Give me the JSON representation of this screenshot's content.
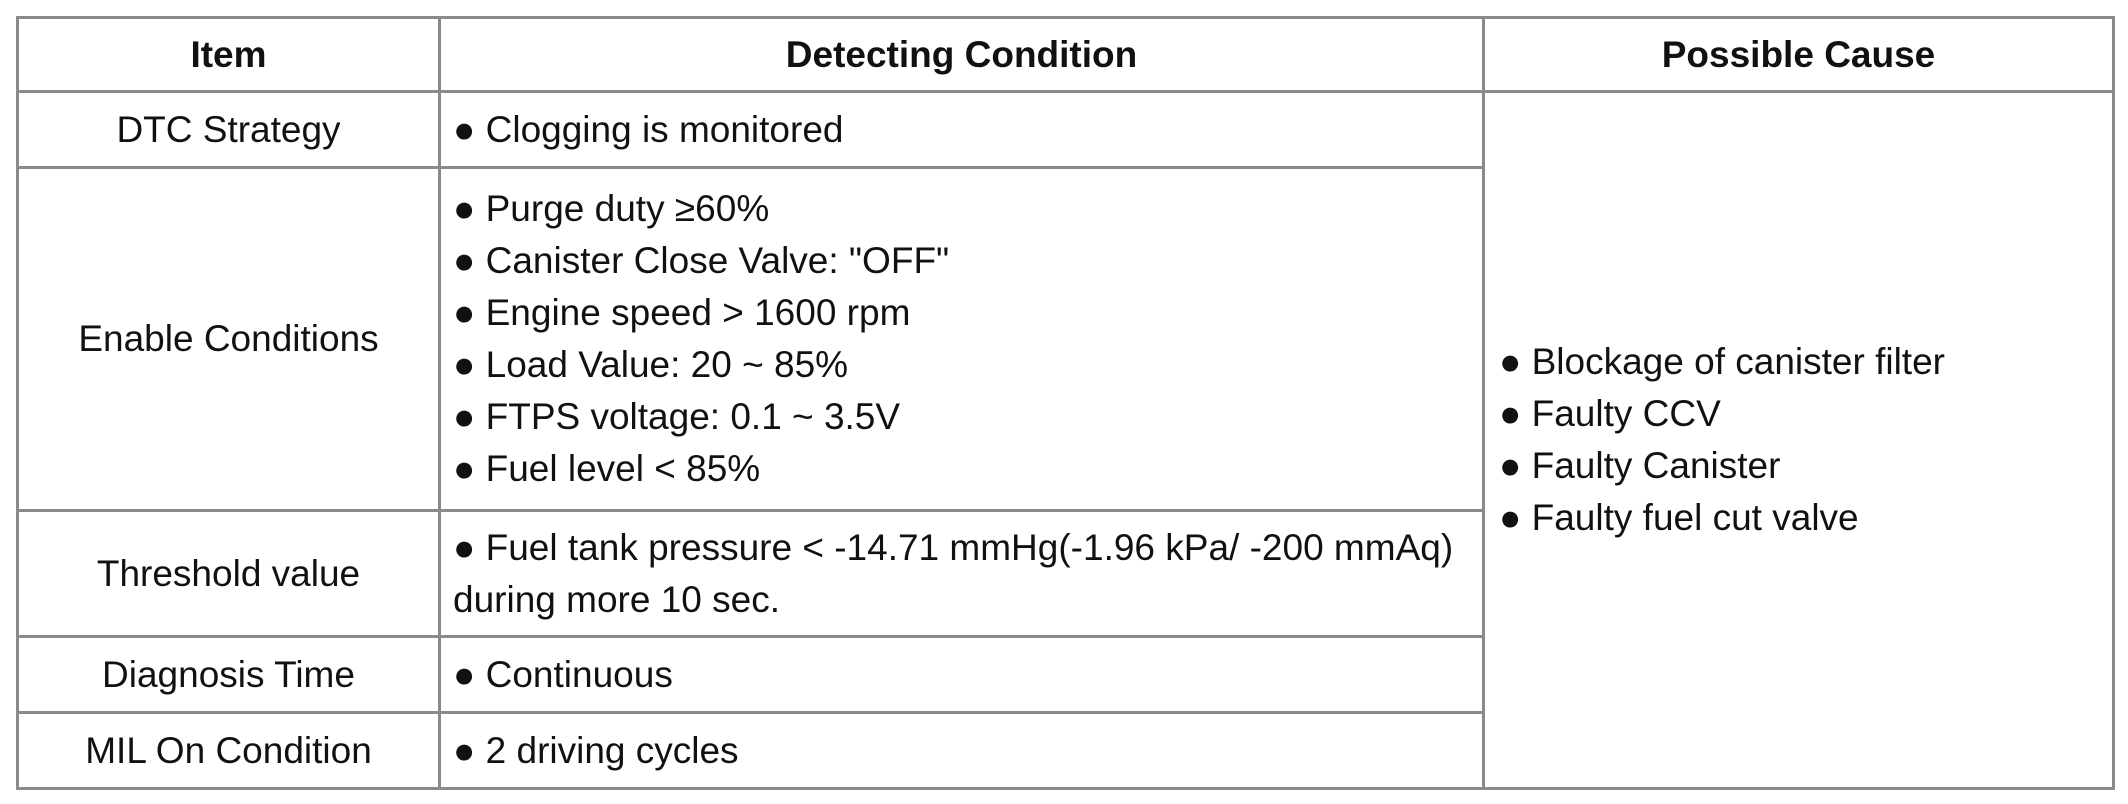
{
  "table": {
    "header": [
      "Item",
      "Detecting Condition",
      "Possible Cause"
    ],
    "rows": [
      {
        "item": "DTC Strategy",
        "conditions": [
          "● Clogging is monitored"
        ]
      },
      {
        "item": "Enable Conditions",
        "conditions": [
          "● Purge duty ≥60%",
          "● Canister Close Valve: \"OFF\"",
          "● Engine speed > 1600 rpm",
          "● Load Value: 20 ~ 85%",
          "● FTPS voltage: 0.1 ~ 3.5V",
          "● Fuel level < 85%"
        ]
      },
      {
        "item": "Threshold value",
        "conditions": [
          "● Fuel tank pressure < -14.71 mmHg(-1.96 kPa/ -200 mmAq) during more 10 sec."
        ]
      },
      {
        "item": "Diagnosis Time",
        "conditions": [
          "● Continuous"
        ]
      },
      {
        "item": "MIL On Condition",
        "conditions": [
          "● 2 driving cycles"
        ]
      }
    ],
    "causes": [
      "● Blockage of canister filter",
      "● Faulty CCV",
      "● Faulty Canister",
      "● Faulty fuel cut valve"
    ]
  }
}
